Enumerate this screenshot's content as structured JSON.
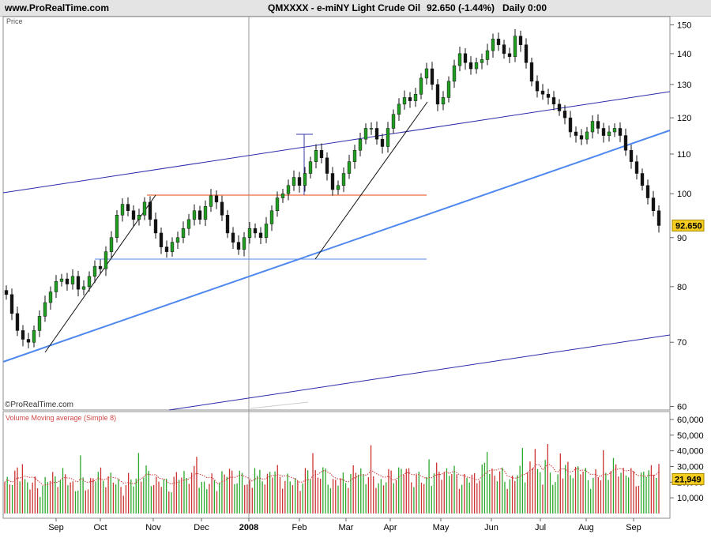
{
  "header": {
    "site": "www.ProRealTime.com",
    "symbol_name": "QMXXXX - e-miNY Light Crude Oil",
    "price_change": "92.650 (-1.44%)",
    "period": "Daily  0:00"
  },
  "colors": {
    "up_candle": "#1f9e1f",
    "down_candle": "#111111",
    "upper_channel": "#2a2aaa",
    "support_line": "#4f88ee",
    "resistance_line": "#ee6a3a",
    "volume_up": "#2aa82a",
    "volume_down": "#cc3333",
    "volume_ma": "#cc3333",
    "last_price_tag": "#f5cc20"
  },
  "chart_data": [
    {
      "type": "candlestick",
      "title": "QMXXXX - e-miNY Light Crude Oil",
      "ylabel": "Price",
      "y_scale": "log",
      "ylim": [
        60,
        152
      ],
      "y_ticks": [
        60,
        70,
        80,
        90,
        100,
        110,
        120,
        130,
        140,
        150
      ],
      "x_ticks": [
        "Sep",
        "Oct",
        "Nov",
        "Dec",
        "2008",
        "Feb",
        "Mar",
        "Apr",
        "May",
        "Jun",
        "Jul",
        "Aug",
        "Sep"
      ],
      "last_price": "92.650",
      "watermark": "©ProRealTime.com",
      "series": [
        {
          "values": [
            78.5,
            75,
            72,
            70.5,
            70,
            72,
            74.5,
            77,
            79,
            81,
            81.5,
            80.5,
            82,
            79.5,
            80,
            82,
            84,
            83.5,
            87,
            90,
            95,
            97.5,
            96,
            94,
            95,
            98,
            94,
            91,
            88,
            87,
            89,
            90,
            92,
            94,
            96,
            94,
            97,
            99.5,
            98,
            95,
            91,
            89,
            87.5,
            90,
            92,
            91,
            90,
            93,
            96,
            99,
            100,
            102,
            104,
            102,
            105,
            108,
            111,
            109,
            105,
            101,
            102,
            105,
            108,
            111,
            114,
            117,
            117,
            114,
            112,
            117,
            121,
            124,
            126,
            125,
            127,
            132,
            135,
            130,
            124,
            126,
            131,
            136,
            140,
            137,
            135,
            137,
            138,
            141,
            145,
            143,
            140,
            139,
            146,
            143,
            137,
            131,
            128,
            127,
            126,
            124,
            122,
            120,
            116,
            115,
            114,
            116,
            119,
            117,
            115,
            116,
            117,
            115,
            111,
            108,
            105,
            102,
            99,
            96,
            92.65
          ]
        }
      ]
    },
    {
      "type": "bar",
      "title": "Volume Moving average (Simple 8)",
      "y_ticks": [
        "10,000",
        "20,000",
        "30,000",
        "40,000",
        "50,000",
        "60,000"
      ],
      "last_value": "21,949"
    }
  ]
}
